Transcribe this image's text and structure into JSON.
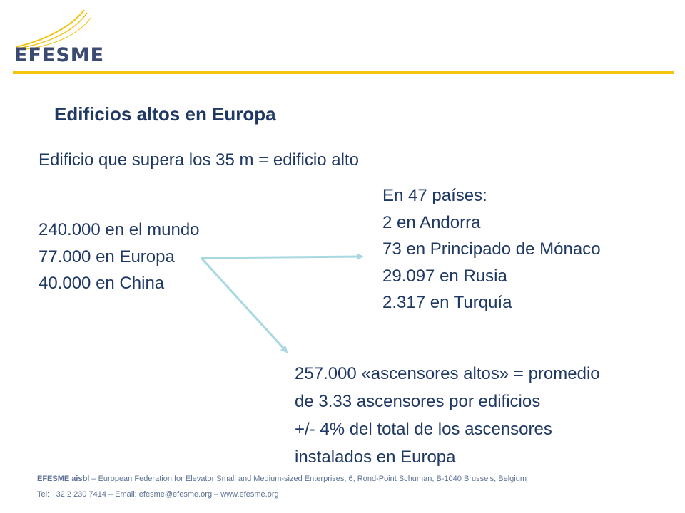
{
  "logo": {
    "text": "EFESME"
  },
  "title": "Edificios altos en Europa",
  "definition": "Edificio que supera los 35 m = edificio alto",
  "left_stats": [
    "240.000 en el mundo",
    "77.000 en Europa",
    "40.000 en China"
  ],
  "right_stats": [
    "En 47 países:",
    "2 en Andorra",
    "73 en Principado de Mónaco",
    "29.097 en Rusia",
    "2.317 en Turquía"
  ],
  "bottom_stats": [
    "257.000 «ascensores altos»  = promedio",
    "de 3.33 ascensores por edificios",
    "+/- 4% del total de los ascensores",
    "instalados en Europa"
  ],
  "footer": {
    "org": "EFESME aisbl",
    "address": " – European Federation for Elevator Small and Medium-sized Enterprises, 6, Rond-Point Schuman, B-1040 Brussels, Belgium",
    "contact": "Tel: +32 2 230 7414 – Email: efesme@efesme.org – www.efesme.org"
  },
  "colors": {
    "accent": "#f2c40f",
    "text": "#1f3864",
    "arrow": "#a8d8e0",
    "logo_text": "#3b4a70",
    "footer": "#5d7294"
  }
}
